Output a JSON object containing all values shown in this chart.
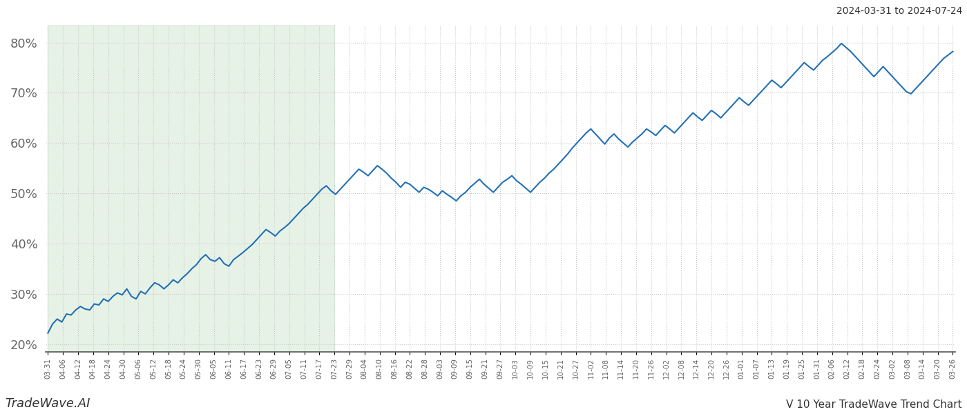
{
  "title_top_right": "2024-03-31 to 2024-07-24",
  "title_bottom_left": "TradeWave.AI",
  "title_bottom_right": "V 10 Year TradeWave Trend Chart",
  "line_color": "#2270b5",
  "line_width": 1.5,
  "bg_color": "#ffffff",
  "grid_color": "#c8c8c8",
  "grid_linestyle": ":",
  "shading_color": "#d4e8d4",
  "shading_alpha": 0.55,
  "ylim": [
    0.185,
    0.835
  ],
  "yticks": [
    0.2,
    0.3,
    0.4,
    0.5,
    0.6,
    0.7,
    0.8
  ],
  "ytick_labels": [
    "20%",
    "30%",
    "40%",
    "50%",
    "60%",
    "70%",
    "80%"
  ],
  "ytick_fontsize": 13,
  "shade_start_label": "03-31",
  "shade_end_label": "07-23",
  "x_labels": [
    "03-31",
    "04-06",
    "04-12",
    "04-18",
    "04-24",
    "04-30",
    "05-06",
    "05-12",
    "05-18",
    "05-24",
    "05-30",
    "06-05",
    "06-11",
    "06-17",
    "06-23",
    "06-29",
    "07-05",
    "07-11",
    "07-17",
    "07-23",
    "07-29",
    "08-04",
    "08-10",
    "08-16",
    "08-22",
    "08-28",
    "09-03",
    "09-09",
    "09-15",
    "09-21",
    "09-27",
    "10-03",
    "10-09",
    "10-15",
    "10-21",
    "10-27",
    "11-02",
    "11-08",
    "11-14",
    "11-20",
    "11-26",
    "12-02",
    "12-08",
    "12-14",
    "12-20",
    "12-26",
    "01-01",
    "01-07",
    "01-13",
    "01-19",
    "01-25",
    "01-31",
    "02-06",
    "02-12",
    "02-18",
    "02-24",
    "03-02",
    "03-08",
    "03-14",
    "03-20",
    "03-26"
  ],
  "y_values": [
    0.222,
    0.24,
    0.25,
    0.244,
    0.26,
    0.258,
    0.268,
    0.275,
    0.27,
    0.268,
    0.28,
    0.278,
    0.29,
    0.285,
    0.295,
    0.302,
    0.298,
    0.31,
    0.295,
    0.29,
    0.305,
    0.3,
    0.312,
    0.322,
    0.318,
    0.31,
    0.318,
    0.328,
    0.322,
    0.332,
    0.34,
    0.35,
    0.358,
    0.37,
    0.378,
    0.368,
    0.365,
    0.372,
    0.36,
    0.355,
    0.368,
    0.375,
    0.382,
    0.39,
    0.398,
    0.408,
    0.418,
    0.428,
    0.422,
    0.415,
    0.425,
    0.432,
    0.44,
    0.45,
    0.46,
    0.47,
    0.478,
    0.488,
    0.498,
    0.508,
    0.515,
    0.505,
    0.498,
    0.508,
    0.518,
    0.528,
    0.538,
    0.548,
    0.542,
    0.535,
    0.545,
    0.555,
    0.548,
    0.54,
    0.53,
    0.522,
    0.512,
    0.522,
    0.518,
    0.51,
    0.502,
    0.512,
    0.508,
    0.502,
    0.495,
    0.505,
    0.498,
    0.492,
    0.485,
    0.495,
    0.502,
    0.512,
    0.52,
    0.528,
    0.518,
    0.51,
    0.502,
    0.512,
    0.522,
    0.528,
    0.535,
    0.525,
    0.518,
    0.51,
    0.502,
    0.512,
    0.522,
    0.53,
    0.54,
    0.548,
    0.558,
    0.568,
    0.578,
    0.59,
    0.6,
    0.61,
    0.62,
    0.628,
    0.618,
    0.608,
    0.598,
    0.61,
    0.618,
    0.608,
    0.6,
    0.592,
    0.602,
    0.61,
    0.618,
    0.628,
    0.622,
    0.615,
    0.625,
    0.635,
    0.628,
    0.62,
    0.63,
    0.64,
    0.65,
    0.66,
    0.652,
    0.645,
    0.655,
    0.665,
    0.658,
    0.65,
    0.66,
    0.67,
    0.68,
    0.69,
    0.682,
    0.675,
    0.685,
    0.695,
    0.705,
    0.715,
    0.725,
    0.718,
    0.71,
    0.72,
    0.73,
    0.74,
    0.75,
    0.76,
    0.752,
    0.745,
    0.755,
    0.765,
    0.772,
    0.78,
    0.788,
    0.798,
    0.79,
    0.782,
    0.772,
    0.762,
    0.752,
    0.742,
    0.732,
    0.742,
    0.752,
    0.742,
    0.732,
    0.722,
    0.712,
    0.702,
    0.698,
    0.708,
    0.718,
    0.728,
    0.738,
    0.748,
    0.758,
    0.768,
    0.775,
    0.782
  ]
}
